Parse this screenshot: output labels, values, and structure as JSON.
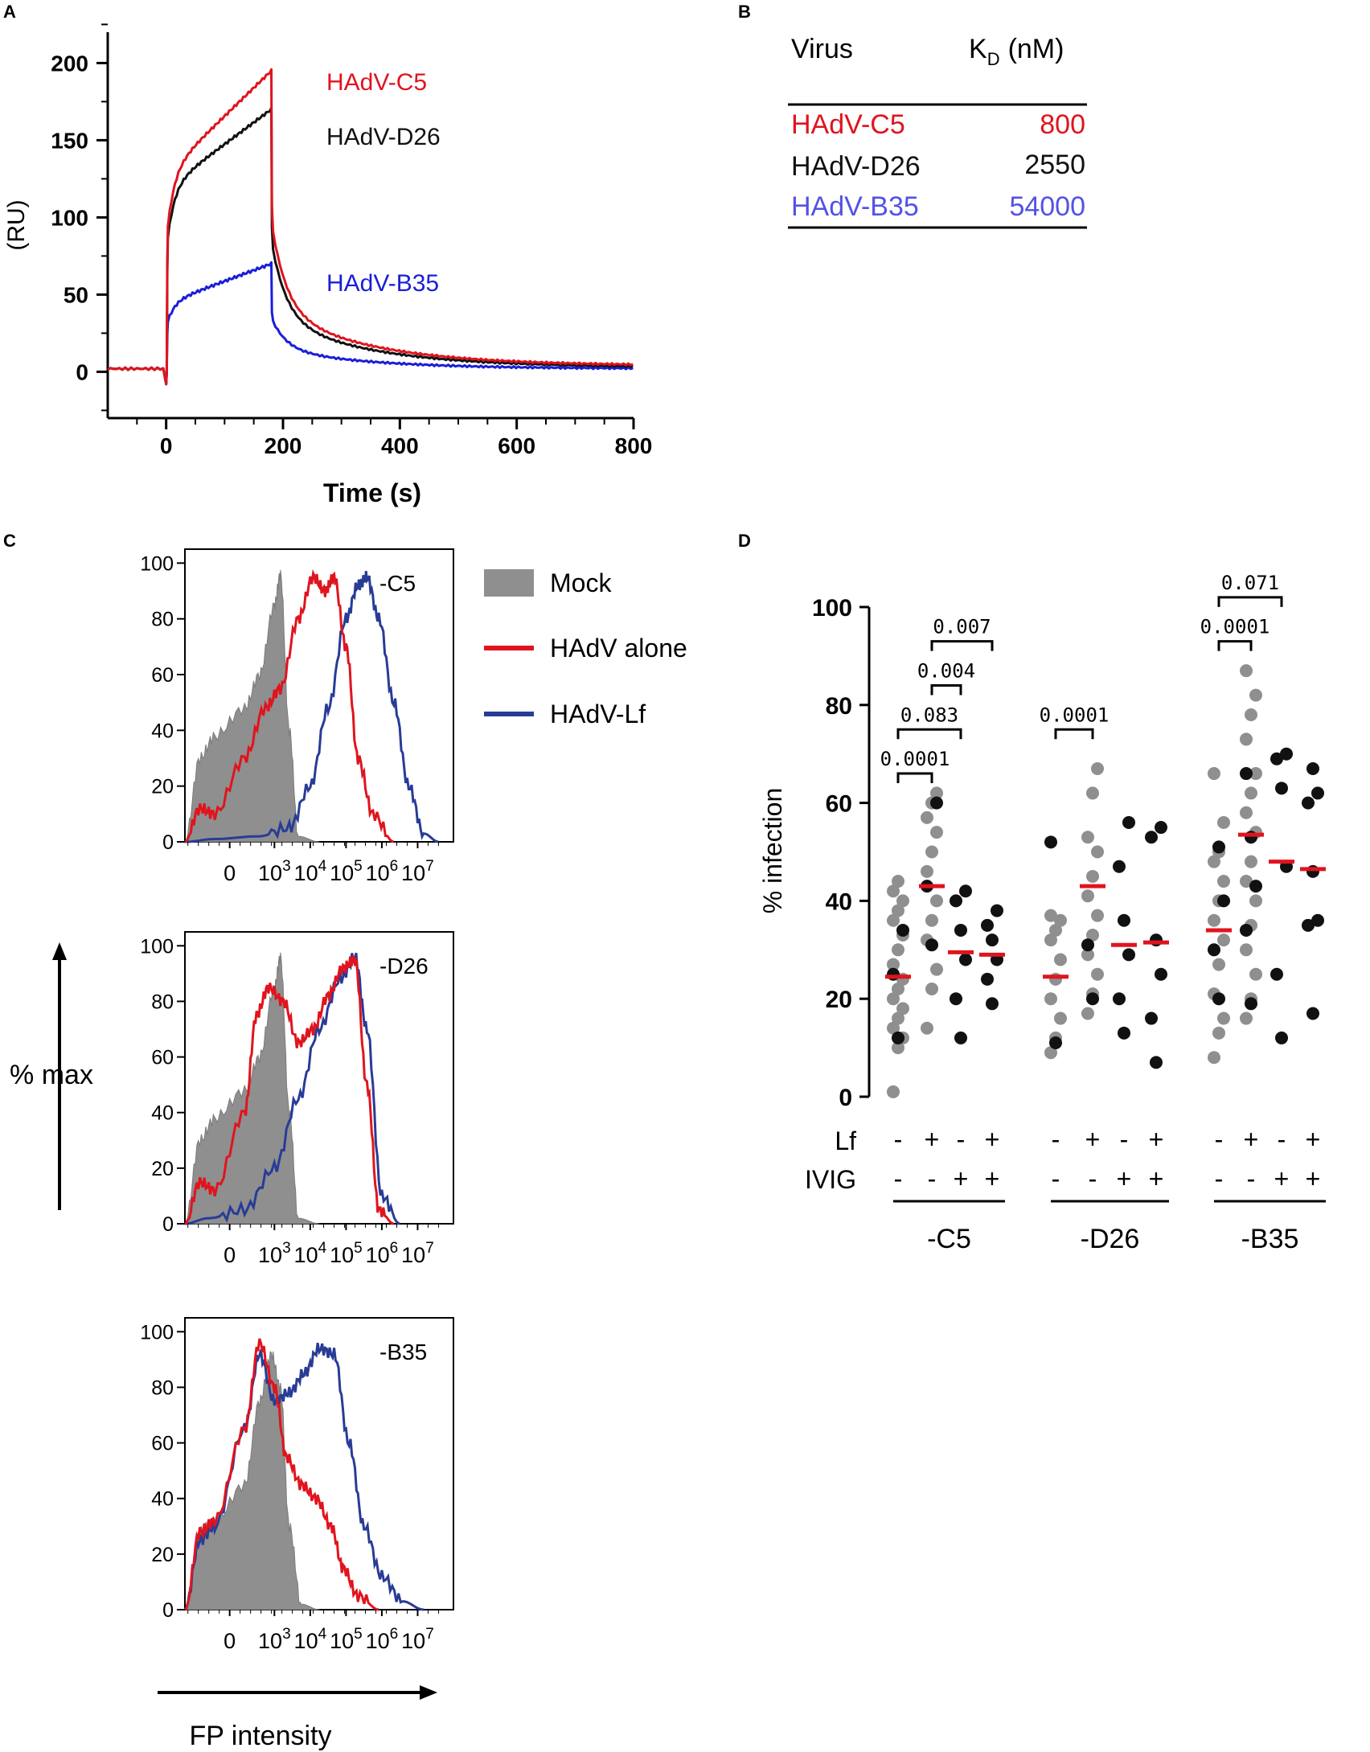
{
  "panels": {
    "a": "A",
    "b": "B",
    "c": "C",
    "d": "D"
  },
  "colors": {
    "red": "#e0141e",
    "black": "#111111",
    "blue": "#1a1fd6",
    "navy": "#283c96",
    "gray": "#8f8f8f",
    "table_blue": "#5252e6",
    "median": "#e0141e"
  },
  "chart_data": [
    {
      "id": "A",
      "type": "line",
      "title": "",
      "xlabel": "Time (s)",
      "ylabel": "(RU)",
      "xlim": [
        -100,
        800
      ],
      "ylim": [
        -30,
        220
      ],
      "xticks": [
        0,
        200,
        400,
        600,
        800
      ],
      "yticks": [
        0,
        50,
        100,
        150,
        200
      ],
      "series": [
        {
          "name": "HAdV-C5",
          "color": "#e0141e",
          "injection_end": 180,
          "plateau_start": 130,
          "plateau_end": 195,
          "residual": 4
        },
        {
          "name": "HAdV-D26",
          "color": "#111111",
          "injection_end": 180,
          "plateau_start": 120,
          "plateau_end": 170,
          "residual": 3
        },
        {
          "name": "HAdV-B35",
          "color": "#1a1fd6",
          "injection_end": 180,
          "plateau_start": 45,
          "plateau_end": 70,
          "residual": 2
        }
      ]
    },
    {
      "id": "B",
      "type": "table",
      "headers": [
        "Virus",
        "K",
        "D",
        "(nM)"
      ],
      "rows": [
        {
          "virus": "HAdV-C5",
          "kd": "800",
          "color": "#e0141e"
        },
        {
          "virus": "HAdV-D26",
          "kd": "2550",
          "color": "#111111"
        },
        {
          "virus": "HAdV-B35",
          "kd": "54000",
          "color": "#5252e6"
        }
      ]
    },
    {
      "id": "C",
      "type": "area",
      "ylabel": "% max",
      "xlabel": "FP intensity",
      "yticks": [
        0,
        20,
        40,
        60,
        80,
        100
      ],
      "xticks": [
        "0",
        "10",
        "10",
        "10",
        "10",
        "10"
      ],
      "xtick_exponents": [
        "",
        "3",
        "4",
        "5",
        "6",
        "7"
      ],
      "legend": [
        {
          "label": "Mock",
          "color": "#8f8f8f"
        },
        {
          "label": "HAdV alone",
          "color": "#e0141e"
        },
        {
          "label": "HAdV-Lf",
          "color": "#283c96"
        }
      ],
      "histograms": [
        {
          "label": "-C5",
          "mock": [
            [
              -2,
              0
            ],
            [
              -1.5,
              30
            ],
            [
              -1,
              38
            ],
            [
              0,
              48
            ],
            [
              0.5,
              60
            ],
            [
              1,
              85
            ],
            [
              1.2,
              96
            ],
            [
              1.5,
              40
            ],
            [
              1.8,
              2
            ],
            [
              2.5,
              0
            ]
          ],
          "alone": [
            [
              -2,
              0
            ],
            [
              -1.5,
              12
            ],
            [
              -1,
              10
            ],
            [
              0,
              30
            ],
            [
              0.7,
              48
            ],
            [
              1.2,
              55
            ],
            [
              1.8,
              80
            ],
            [
              2.3,
              95
            ],
            [
              2.7,
              90
            ],
            [
              3.0,
              95
            ],
            [
              3.4,
              70
            ],
            [
              3.8,
              30
            ],
            [
              4.3,
              10
            ],
            [
              5,
              0
            ]
          ],
          "lf": [
            [
              -2,
              0
            ],
            [
              -1,
              1
            ],
            [
              0.5,
              2
            ],
            [
              1.5,
              5
            ],
            [
              2.2,
              20
            ],
            [
              2.8,
              48
            ],
            [
              3.4,
              80
            ],
            [
              3.8,
              92
            ],
            [
              4.1,
              95
            ],
            [
              4.5,
              80
            ],
            [
              5,
              50
            ],
            [
              5.5,
              20
            ],
            [
              6,
              3
            ],
            [
              6.5,
              0
            ]
          ]
        },
        {
          "label": "-D26",
          "mock": [
            [
              -2,
              0
            ],
            [
              -1.5,
              30
            ],
            [
              -1,
              38
            ],
            [
              0,
              48
            ],
            [
              0.5,
              60
            ],
            [
              1,
              85
            ],
            [
              1.2,
              96
            ],
            [
              1.5,
              40
            ],
            [
              1.8,
              2
            ],
            [
              2.5,
              0
            ]
          ],
          "alone": [
            [
              -2,
              0
            ],
            [
              -1.5,
              15
            ],
            [
              -1,
              12
            ],
            [
              0,
              40
            ],
            [
              0.4,
              75
            ],
            [
              0.8,
              85
            ],
            [
              1.3,
              80
            ],
            [
              1.8,
              65
            ],
            [
              2.3,
              70
            ],
            [
              2.8,
              82
            ],
            [
              3.3,
              92
            ],
            [
              3.7,
              95
            ],
            [
              4.1,
              50
            ],
            [
              4.5,
              5
            ],
            [
              5,
              0
            ]
          ],
          "lf": [
            [
              -2,
              0
            ],
            [
              -1.2,
              2
            ],
            [
              0,
              5
            ],
            [
              1,
              20
            ],
            [
              1.8,
              45
            ],
            [
              2.5,
              70
            ],
            [
              3.2,
              88
            ],
            [
              3.7,
              96
            ],
            [
              4.1,
              70
            ],
            [
              4.6,
              10
            ],
            [
              5.2,
              0
            ]
          ]
        },
        {
          "label": "-B35",
          "mock": [
            [
              -2,
              0
            ],
            [
              -1.5,
              28
            ],
            [
              -1,
              32
            ],
            [
              0,
              45
            ],
            [
              0.5,
              75
            ],
            [
              0.9,
              92
            ],
            [
              1.2,
              80
            ],
            [
              1.5,
              30
            ],
            [
              1.9,
              2
            ],
            [
              2.5,
              0
            ]
          ],
          "alone": [
            [
              -2,
              0
            ],
            [
              -1.5,
              28
            ],
            [
              -1,
              32
            ],
            [
              0,
              65
            ],
            [
              0.5,
              96
            ],
            [
              1.0,
              80
            ],
            [
              1.4,
              55
            ],
            [
              1.9,
              45
            ],
            [
              2.4,
              40
            ],
            [
              2.9,
              30
            ],
            [
              3.3,
              15
            ],
            [
              3.8,
              5
            ],
            [
              4.5,
              0
            ]
          ],
          "lf": [
            [
              -2,
              0
            ],
            [
              -1.5,
              25
            ],
            [
              -1,
              30
            ],
            [
              0,
              65
            ],
            [
              0.5,
              92
            ],
            [
              1.0,
              75
            ],
            [
              1.5,
              78
            ],
            [
              2.0,
              85
            ],
            [
              2.5,
              94
            ],
            [
              3.0,
              92
            ],
            [
              3.5,
              60
            ],
            [
              4.0,
              30
            ],
            [
              4.6,
              12
            ],
            [
              5.3,
              3
            ],
            [
              6,
              0
            ]
          ]
        }
      ]
    },
    {
      "id": "D",
      "type": "scatter",
      "ylabel": "% infection",
      "ylim": [
        0,
        100
      ],
      "yticks": [
        0,
        20,
        40,
        60,
        80,
        100
      ],
      "row_labels": [
        "Lf",
        "IVIG"
      ],
      "lf_signs": [
        "-",
        "+",
        "-",
        "+",
        "-",
        "+",
        "-",
        "+",
        "-",
        "+",
        "-",
        "+"
      ],
      "ivig_signs": [
        "-",
        "-",
        "+",
        "+",
        "-",
        "-",
        "+",
        "+",
        "-",
        "-",
        "+",
        "+"
      ],
      "group_labels": [
        "-C5",
        "-D26",
        "-B35"
      ],
      "columns": [
        {
          "median": 24.5,
          "gray": [
            1,
            10,
            12,
            14,
            16,
            18,
            20,
            22,
            24,
            27,
            30,
            33,
            36,
            38,
            40,
            42,
            44
          ],
          "black": [
            12,
            25,
            34
          ]
        },
        {
          "median": 43,
          "gray": [
            14,
            22,
            26,
            32,
            36,
            40,
            46,
            50,
            54,
            57,
            60,
            62
          ],
          "black": [
            31,
            43,
            60
          ]
        },
        {
          "median": 29.5,
          "gray": [],
          "black": [
            12,
            20,
            28,
            34,
            40,
            42
          ]
        },
        {
          "median": 29,
          "gray": [],
          "black": [
            19,
            24,
            28,
            32,
            35,
            38
          ]
        },
        {
          "median": 24.5,
          "gray": [
            9,
            12,
            16,
            20,
            24,
            28,
            32,
            34,
            36,
            37
          ],
          "black": [
            11,
            52
          ]
        },
        {
          "median": 43,
          "gray": [
            17,
            21,
            25,
            29,
            33,
            37,
            41,
            45,
            50,
            53,
            62,
            67
          ],
          "black": [
            20,
            31
          ]
        },
        {
          "median": 31,
          "gray": [],
          "black": [
            13,
            20,
            29,
            36,
            47,
            56
          ]
        },
        {
          "median": 31.5,
          "gray": [],
          "black": [
            7,
            16,
            25,
            32,
            53,
            55
          ]
        },
        {
          "median": 34,
          "gray": [
            8,
            13,
            16,
            21,
            27,
            32,
            36,
            40,
            44,
            48,
            50,
            56,
            66
          ],
          "black": [
            20,
            30,
            40,
            51
          ]
        },
        {
          "median": 53.5,
          "gray": [
            16,
            20,
            25,
            30,
            35,
            40,
            44,
            48,
            54,
            58,
            62,
            66,
            73,
            78,
            82,
            87
          ],
          "black": [
            19,
            34,
            43,
            53,
            66
          ]
        },
        {
          "median": 48,
          "gray": [],
          "black": [
            12,
            25,
            47,
            63,
            69,
            70
          ]
        },
        {
          "median": 46.5,
          "gray": [],
          "black": [
            17,
            35,
            36,
            46,
            60,
            62,
            67
          ]
        }
      ],
      "comparisons": [
        {
          "label": "0.0001",
          "from": 0,
          "to": 1,
          "level": 66
        },
        {
          "label": "0.083",
          "from": 0,
          "to": 2,
          "level": 75
        },
        {
          "label": "0.004",
          "from": 1,
          "to": 2,
          "level": 84
        },
        {
          "label": "0.007",
          "from": 1,
          "to": 3,
          "level": 93
        },
        {
          "label": "0.0001",
          "from": 4,
          "to": 5,
          "level": 75
        },
        {
          "label": "0.0001",
          "from": 8,
          "to": 9,
          "level": 93
        },
        {
          "label": "0.071",
          "from": 8,
          "to": 10,
          "level": 102
        }
      ]
    }
  ]
}
